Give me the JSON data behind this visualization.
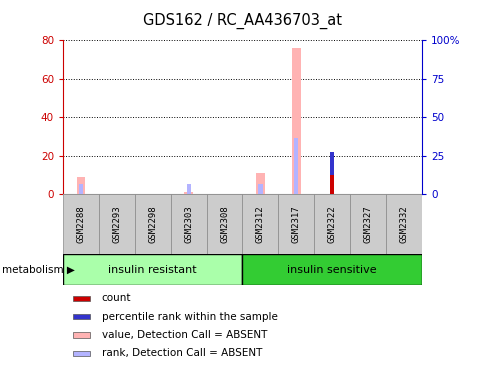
{
  "title": "GDS162 / RC_AA436703_at",
  "samples": [
    "GSM2288",
    "GSM2293",
    "GSM2298",
    "GSM2303",
    "GSM2308",
    "GSM2312",
    "GSM2317",
    "GSM2322",
    "GSM2327",
    "GSM2332"
  ],
  "group_name": "metabolism",
  "ylim_left": [
    0,
    80
  ],
  "ylim_right": [
    0,
    100
  ],
  "yticks_left": [
    0,
    20,
    40,
    60,
    80
  ],
  "yticks_right": [
    0,
    25,
    50,
    75,
    100
  ],
  "ytick_labels_right": [
    "0",
    "25",
    "50",
    "75",
    "100%"
  ],
  "value_absent": [
    9,
    0,
    0,
    1,
    0,
    11,
    76,
    0,
    0,
    0
  ],
  "rank_absent": [
    5,
    0,
    0,
    5,
    0,
    5,
    29,
    0,
    0,
    0
  ],
  "count": [
    0,
    0,
    0,
    0,
    0,
    0,
    0,
    10,
    0,
    0
  ],
  "percentile_rank": [
    0,
    0,
    0,
    0,
    0,
    0,
    0,
    12,
    0,
    0
  ],
  "color_count": "#cc0000",
  "color_percentile": "#3333cc",
  "color_value_absent": "#ffb3b3",
  "color_rank_absent": "#b3b3ff",
  "legend_items": [
    {
      "color": "#cc0000",
      "label": "count"
    },
    {
      "color": "#3333cc",
      "label": "percentile rank within the sample"
    },
    {
      "color": "#ffb3b3",
      "label": "value, Detection Call = ABSENT"
    },
    {
      "color": "#b3b3ff",
      "label": "rank, Detection Call = ABSENT"
    }
  ],
  "group_resistant_color": "#aaffaa",
  "group_sensitive_color": "#33cc33",
  "background_color": "#ffffff",
  "axis_left_color": "#cc0000",
  "axis_right_color": "#0000cc",
  "n_resistant": 5,
  "n_sensitive": 5
}
